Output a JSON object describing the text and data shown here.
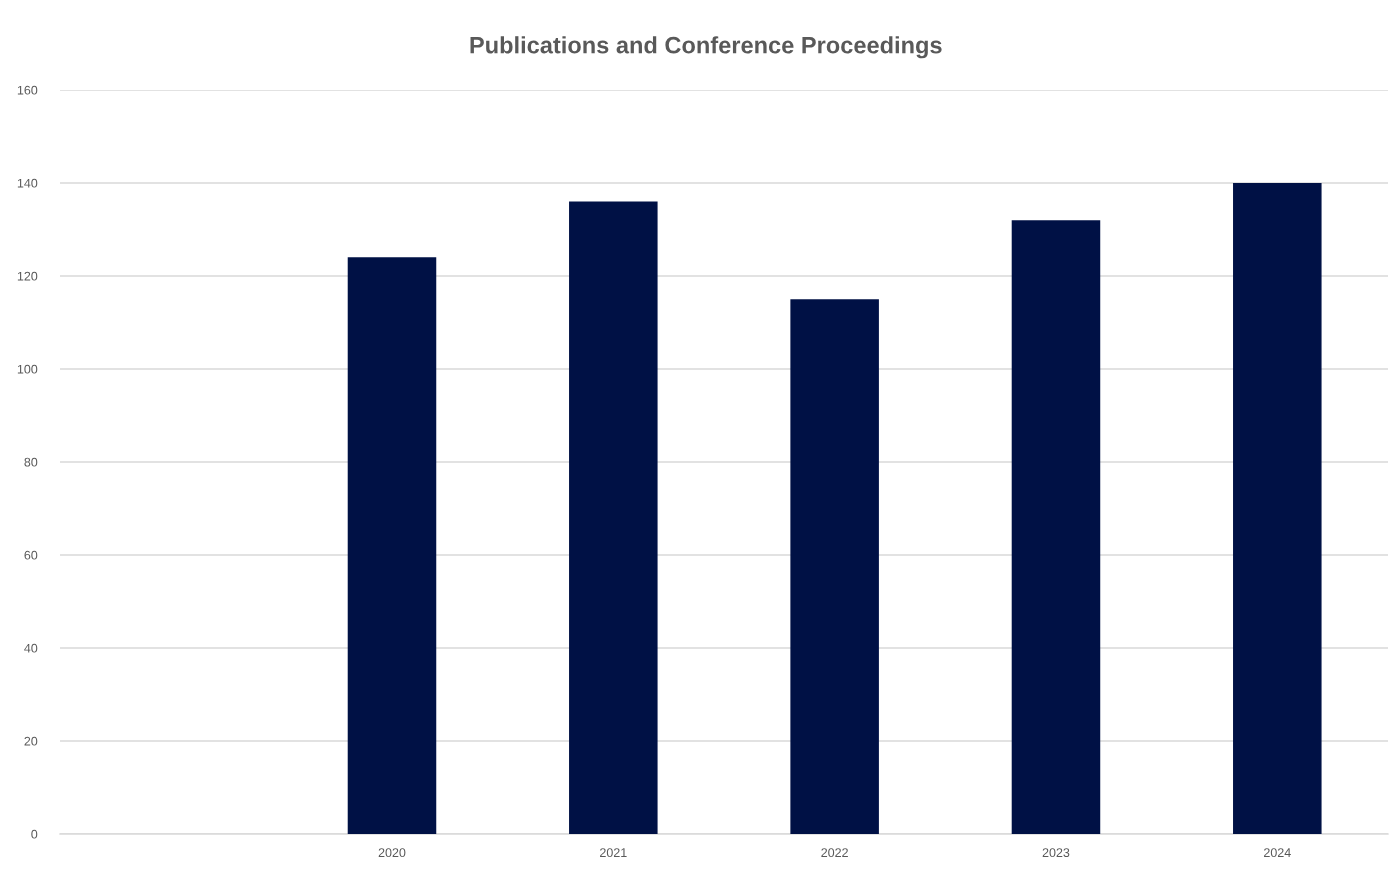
{
  "chart_data": {
    "type": "bar",
    "title": "Publications and Conference Proceedings",
    "categories": [
      null,
      "2020",
      "2021",
      "2022",
      "2023",
      "2024"
    ],
    "values": [
      null,
      124,
      136,
      115,
      132,
      140
    ],
    "color": "#001145",
    "ylim": [
      0,
      160
    ],
    "yticks": [
      0,
      20,
      40,
      60,
      80,
      100,
      120,
      140,
      160
    ],
    "grid": "y",
    "legend": false
  }
}
